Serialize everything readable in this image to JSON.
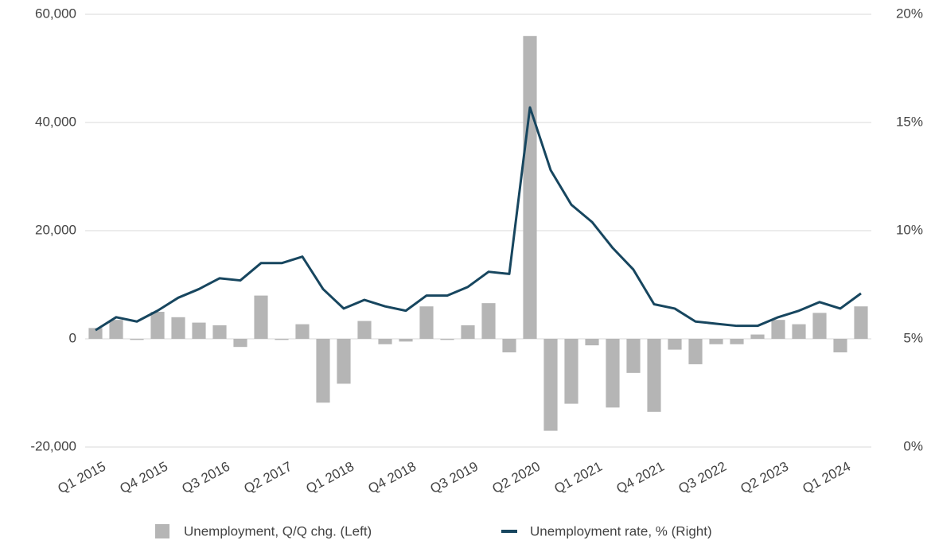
{
  "chart_data": {
    "type": "bar_line",
    "categories": [
      "Q1 2015",
      null,
      null,
      "Q4 2015",
      null,
      null,
      "Q3 2016",
      null,
      null,
      "Q2 2017",
      null,
      null,
      "Q1 2018",
      null,
      null,
      "Q4 2018",
      null,
      null,
      "Q3 2019",
      null,
      null,
      "Q2 2020",
      null,
      null,
      "Q1 2021",
      null,
      null,
      "Q4 2021",
      null,
      null,
      "Q3 2022",
      null,
      null,
      "Q2 2023",
      null,
      null,
      "Q1 2024",
      null
    ],
    "series": [
      {
        "name": "Unemployment, Q/Q chg. (Left)",
        "type": "bar",
        "color": "#b5b5b5",
        "axis": "y",
        "values": [
          2000,
          3500,
          -200,
          5000,
          4000,
          3000,
          2500,
          -1500,
          8000,
          -200,
          2700,
          -11800,
          -8300,
          3300,
          -1000,
          -500,
          6000,
          -200,
          2500,
          6600,
          -2500,
          56000,
          -17000,
          -12000,
          -1200,
          -12700,
          -6300,
          -13500,
          -2000,
          -4700,
          -1000,
          -1000,
          800,
          3500,
          2700,
          4800,
          -2500,
          6000
        ]
      },
      {
        "name": "Unemployment rate, % (Right)",
        "type": "line",
        "color": "#17465f",
        "axis": "y2",
        "values": [
          5.4,
          6.0,
          5.8,
          6.3,
          6.9,
          7.3,
          7.8,
          7.7,
          8.5,
          8.5,
          8.8,
          7.3,
          6.4,
          6.8,
          6.5,
          6.3,
          7.0,
          7.0,
          7.4,
          8.1,
          8.0,
          15.7,
          12.8,
          11.2,
          10.4,
          9.2,
          8.2,
          6.6,
          6.4,
          5.8,
          5.7,
          5.6,
          5.6,
          6.0,
          6.3,
          6.7,
          6.4,
          7.1
        ]
      }
    ],
    "ylim": [
      -20000,
      60000
    ],
    "yticks": [
      {
        "value": -20000,
        "label": "-20,000"
      },
      0,
      {
        "value": 20000,
        "label": "20,000"
      },
      {
        "value": 40000,
        "label": "40,000"
      },
      {
        "value": 60000,
        "label": "60,000"
      }
    ],
    "y2lim": [
      0,
      20
    ],
    "y2ticks": [
      {
        "value": 0,
        "label": "0%"
      },
      {
        "value": 5,
        "label": "5%"
      },
      {
        "value": 10,
        "label": "10%"
      },
      {
        "value": 15,
        "label": "15%"
      },
      {
        "value": 20,
        "label": "20%"
      }
    ],
    "grid": true
  }
}
